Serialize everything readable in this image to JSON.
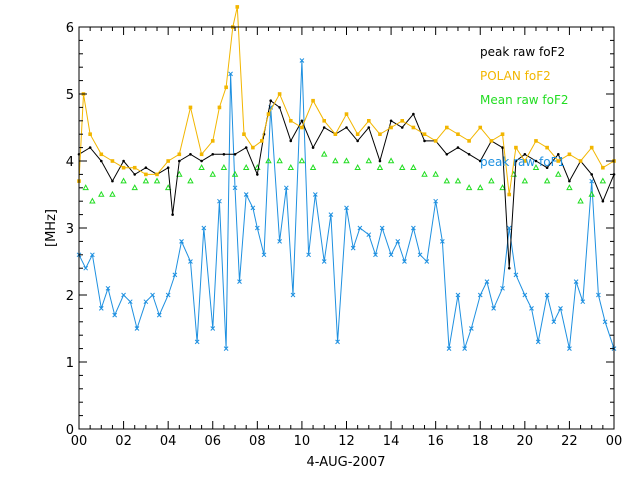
{
  "chart_data": {
    "type": "line",
    "title": "",
    "xlabel": "4-AUG-2007",
    "ylabel": "[MHz]",
    "xlim": [
      0,
      24
    ],
    "ylim": [
      0,
      6
    ],
    "x_tick_labels": [
      "00",
      "02",
      "04",
      "06",
      "08",
      "10",
      "12",
      "14",
      "16",
      "18",
      "20",
      "22",
      "00"
    ],
    "y_tick_labels": [
      "0",
      "1",
      "2",
      "3",
      "4",
      "5",
      "6"
    ],
    "series": [
      {
        "name": "peak raw foF2",
        "color": "#000000",
        "marker": "dot",
        "line": true,
        "x": [
          0.0,
          0.5,
          1.0,
          1.5,
          2.0,
          2.5,
          3.0,
          3.5,
          4.0,
          4.2,
          4.5,
          5.0,
          5.5,
          6.0,
          6.5,
          7.0,
          7.5,
          8.0,
          8.3,
          8.6,
          9.0,
          9.5,
          10.0,
          10.5,
          11.0,
          11.5,
          12.0,
          12.5,
          13.0,
          13.5,
          14.0,
          14.5,
          15.0,
          15.5,
          16.0,
          16.5,
          17.0,
          17.5,
          18.0,
          18.5,
          19.0,
          19.3,
          19.6,
          20.0,
          20.5,
          21.0,
          21.5,
          22.0,
          22.5,
          23.0,
          23.5,
          24.0
        ],
        "values": [
          4.1,
          4.2,
          4.0,
          3.7,
          4.0,
          3.8,
          3.9,
          3.8,
          3.9,
          3.2,
          4.0,
          4.1,
          4.0,
          4.1,
          4.1,
          4.1,
          4.2,
          3.8,
          4.4,
          4.9,
          4.8,
          4.3,
          4.6,
          4.2,
          4.5,
          4.4,
          4.5,
          4.3,
          4.5,
          4.0,
          4.6,
          4.5,
          4.7,
          4.3,
          4.3,
          4.1,
          4.2,
          4.1,
          4.0,
          4.3,
          4.2,
          2.4,
          4.0,
          4.1,
          4.0,
          3.9,
          4.1,
          3.7,
          4.0,
          3.8,
          3.4,
          3.8
        ]
      },
      {
        "name": "POLAN foF2",
        "color": "#f2b600",
        "marker": "square",
        "line": true,
        "x": [
          0.0,
          0.2,
          0.5,
          1.0,
          1.5,
          2.0,
          2.5,
          3.0,
          3.5,
          4.0,
          4.5,
          5.0,
          5.5,
          6.0,
          6.3,
          6.6,
          6.9,
          7.1,
          7.4,
          7.8,
          8.2,
          8.5,
          9.0,
          9.5,
          10.0,
          10.5,
          11.0,
          11.5,
          12.0,
          12.5,
          13.0,
          13.5,
          14.0,
          14.5,
          15.0,
          15.5,
          16.0,
          16.5,
          17.0,
          17.5,
          18.0,
          18.5,
          19.0,
          19.3,
          19.6,
          20.0,
          20.5,
          21.0,
          21.5,
          22.0,
          22.5,
          23.0,
          23.5,
          24.0
        ],
        "values": [
          3.7,
          5.0,
          4.4,
          4.1,
          4.0,
          3.9,
          3.9,
          3.8,
          3.8,
          4.0,
          4.1,
          4.8,
          4.1,
          4.3,
          4.8,
          5.1,
          6.0,
          6.3,
          4.4,
          4.2,
          4.3,
          4.7,
          5.0,
          4.6,
          4.5,
          4.9,
          4.6,
          4.4,
          4.7,
          4.4,
          4.6,
          4.4,
          4.5,
          4.6,
          4.5,
          4.4,
          4.3,
          4.5,
          4.4,
          4.3,
          4.5,
          4.3,
          4.4,
          3.5,
          4.2,
          4.0,
          4.3,
          4.2,
          4.0,
          4.1,
          4.0,
          4.2,
          3.9,
          4.0
        ]
      },
      {
        "name": "Mean raw foF2",
        "color": "#22dd22",
        "marker": "triangle",
        "line": false,
        "x": [
          0.3,
          0.6,
          1.0,
          1.5,
          2.0,
          2.5,
          3.0,
          3.5,
          4.0,
          4.5,
          5.0,
          5.5,
          6.0,
          6.5,
          7.0,
          7.5,
          8.0,
          8.5,
          9.0,
          9.5,
          10.0,
          10.5,
          11.0,
          11.5,
          12.0,
          12.5,
          13.0,
          13.5,
          14.0,
          14.5,
          15.0,
          15.5,
          16.0,
          16.5,
          17.0,
          17.5,
          18.0,
          18.5,
          19.0,
          19.5,
          20.0,
          20.5,
          21.0,
          21.5,
          22.0,
          22.5,
          23.0,
          23.5
        ],
        "values": [
          3.6,
          3.4,
          3.5,
          3.5,
          3.7,
          3.6,
          3.7,
          3.7,
          3.6,
          3.8,
          3.7,
          3.9,
          3.8,
          3.9,
          3.8,
          3.9,
          3.9,
          4.0,
          4.0,
          3.9,
          4.0,
          3.9,
          4.1,
          4.0,
          4.0,
          3.9,
          4.0,
          3.9,
          4.0,
          3.9,
          3.9,
          3.8,
          3.8,
          3.7,
          3.7,
          3.6,
          3.6,
          3.7,
          3.6,
          3.8,
          3.7,
          3.9,
          3.7,
          3.8,
          3.6,
          3.4,
          3.5,
          3.7
        ]
      },
      {
        "name": "peak raw foF1",
        "color": "#1e90e0",
        "marker": "x",
        "line": true,
        "x": [
          0.0,
          0.3,
          0.6,
          1.0,
          1.3,
          1.6,
          2.0,
          2.3,
          2.6,
          3.0,
          3.3,
          3.6,
          4.0,
          4.3,
          4.6,
          5.0,
          5.3,
          5.6,
          6.0,
          6.3,
          6.6,
          6.8,
          7.0,
          7.2,
          7.5,
          7.8,
          8.0,
          8.3,
          8.6,
          9.0,
          9.3,
          9.6,
          10.0,
          10.3,
          10.6,
          11.0,
          11.3,
          11.6,
          12.0,
          12.3,
          12.6,
          13.0,
          13.3,
          13.6,
          14.0,
          14.3,
          14.6,
          15.0,
          15.3,
          15.6,
          16.0,
          16.3,
          16.6,
          17.0,
          17.3,
          17.6,
          18.0,
          18.3,
          18.6,
          19.0,
          19.3,
          19.6,
          20.0,
          20.3,
          20.6,
          21.0,
          21.3,
          21.6,
          22.0,
          22.3,
          22.6,
          23.0,
          23.3,
          23.6,
          24.0
        ],
        "values": [
          2.6,
          2.4,
          2.6,
          1.8,
          2.1,
          1.7,
          2.0,
          1.9,
          1.5,
          1.9,
          2.0,
          1.7,
          2.0,
          2.3,
          2.8,
          2.5,
          1.3,
          3.0,
          1.5,
          3.4,
          1.2,
          5.3,
          3.6,
          2.2,
          3.5,
          3.3,
          3.0,
          2.6,
          4.8,
          2.8,
          3.6,
          2.0,
          5.5,
          2.6,
          3.5,
          2.5,
          3.2,
          1.3,
          3.3,
          2.7,
          3.0,
          2.9,
          2.6,
          3.0,
          2.6,
          2.8,
          2.5,
          3.0,
          2.6,
          2.5,
          3.4,
          2.8,
          1.2,
          2.0,
          1.2,
          1.5,
          2.0,
          2.2,
          1.8,
          2.1,
          3.0,
          2.3,
          2.0,
          1.8,
          1.3,
          2.0,
          1.6,
          1.8,
          1.2,
          2.2,
          1.9,
          3.7,
          2.0,
          1.6,
          1.2
        ]
      }
    ],
    "legend": {
      "placement": "top-right",
      "entries": [
        {
          "label": "peak raw foF2",
          "color": "#000000"
        },
        {
          "label": "POLAN foF2",
          "color": "#f2b600"
        },
        {
          "label": "Mean raw foF2",
          "color": "#22dd22"
        },
        {
          "label": "peak raw foF1",
          "color": "#1e90e0"
        }
      ]
    }
  }
}
